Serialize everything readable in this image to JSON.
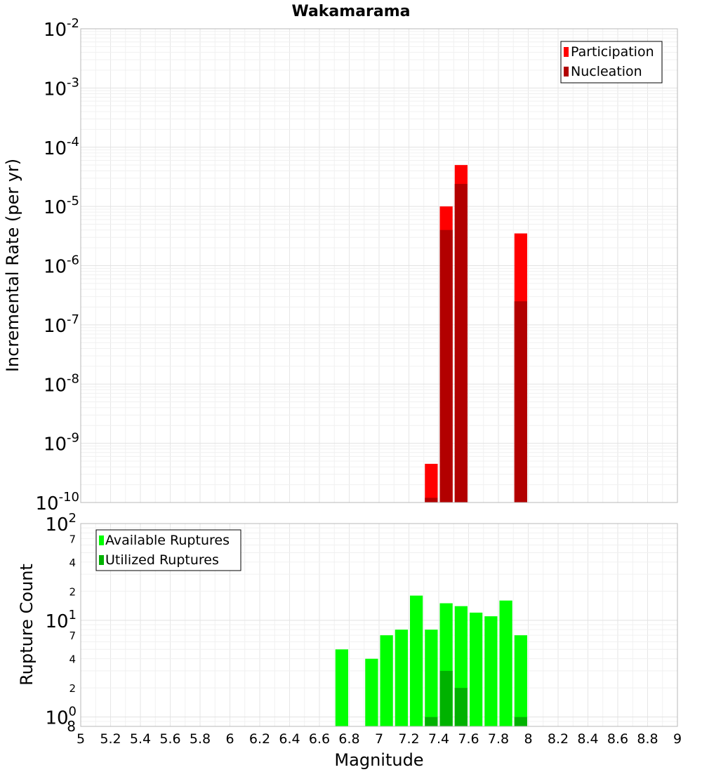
{
  "chart_data": [
    {
      "type": "bar",
      "title": "Wakamarama",
      "xlabel": "",
      "ylabel": "Incremental Rate (per yr)",
      "yscale": "log",
      "ylim": [
        1e-10,
        0.01
      ],
      "xlim": [
        5,
        9
      ],
      "bar_width": 0.1,
      "y_ticks": [
        {
          "base": "10",
          "exp": "-10",
          "value": 1e-10
        },
        {
          "base": "10",
          "exp": "-9",
          "value": 1e-09
        },
        {
          "base": "10",
          "exp": "-8",
          "value": 1e-08
        },
        {
          "base": "10",
          "exp": "-7",
          "value": 1e-07
        },
        {
          "base": "10",
          "exp": "-6",
          "value": 1e-06
        },
        {
          "base": "10",
          "exp": "-5",
          "value": 1e-05
        },
        {
          "base": "10",
          "exp": "-4",
          "value": 0.0001
        },
        {
          "base": "10",
          "exp": "-3",
          "value": 0.001
        },
        {
          "base": "10",
          "exp": "-2",
          "value": 0.01
        }
      ],
      "legend": {
        "position": "top-right"
      },
      "series": [
        {
          "name": "Participation",
          "color": "#ff0000",
          "points": [
            {
              "x": 7.35,
              "y": 4.5e-10
            },
            {
              "x": 7.45,
              "y": 1e-05
            },
            {
              "x": 7.55,
              "y": 5e-05
            },
            {
              "x": 7.95,
              "y": 3.5e-06
            }
          ]
        },
        {
          "name": "Nucleation",
          "color": "#b20000",
          "points": [
            {
              "x": 7.35,
              "y": 1.2e-10
            },
            {
              "x": 7.45,
              "y": 4e-06
            },
            {
              "x": 7.55,
              "y": 2.4e-05
            },
            {
              "x": 7.95,
              "y": 2.5e-07
            }
          ]
        }
      ]
    },
    {
      "type": "bar",
      "title": "",
      "xlabel": "Magnitude",
      "ylabel": "Rupture Count",
      "yscale": "log",
      "ylim": [
        0.8,
        100
      ],
      "xlim": [
        5,
        9
      ],
      "bar_width": 0.1,
      "x_tick_labels": [
        "5",
        "5.2",
        "5.4",
        "5.6",
        "5.8",
        "6",
        "6.2",
        "6.4",
        "6.6",
        "6.8",
        "7",
        "7.2",
        "7.4",
        "7.6",
        "7.8",
        "8",
        "8.2",
        "8.4",
        "8.6",
        "8.8",
        "9"
      ],
      "y_major_ticks": [
        {
          "base": "10",
          "exp": "0",
          "value": 1
        },
        {
          "base": "10",
          "exp": "1",
          "value": 10
        },
        {
          "base": "10",
          "exp": "2",
          "value": 100
        }
      ],
      "y_minor_ticks": [
        {
          "label": "8",
          "value": 0.8
        },
        {
          "label": "2",
          "value": 2
        },
        {
          "label": "4",
          "value": 4
        },
        {
          "label": "7",
          "value": 7
        },
        {
          "label": "2",
          "value": 20
        },
        {
          "label": "4",
          "value": 40
        },
        {
          "label": "7",
          "value": 70
        }
      ],
      "legend": {
        "position": "top-left"
      },
      "series": [
        {
          "name": "Available Ruptures",
          "color": "#00ff00",
          "points": [
            {
              "x": 6.75,
              "y": 5
            },
            {
              "x": 6.95,
              "y": 4
            },
            {
              "x": 7.05,
              "y": 7
            },
            {
              "x": 7.15,
              "y": 8
            },
            {
              "x": 7.25,
              "y": 18
            },
            {
              "x": 7.35,
              "y": 8
            },
            {
              "x": 7.45,
              "y": 15
            },
            {
              "x": 7.55,
              "y": 14
            },
            {
              "x": 7.65,
              "y": 12
            },
            {
              "x": 7.75,
              "y": 11
            },
            {
              "x": 7.85,
              "y": 16
            },
            {
              "x": 7.95,
              "y": 7
            }
          ]
        },
        {
          "name": "Utilized Ruptures",
          "color": "#00b200",
          "points": [
            {
              "x": 7.35,
              "y": 1
            },
            {
              "x": 7.45,
              "y": 3
            },
            {
              "x": 7.55,
              "y": 2
            },
            {
              "x": 7.95,
              "y": 1
            }
          ]
        }
      ]
    }
  ]
}
